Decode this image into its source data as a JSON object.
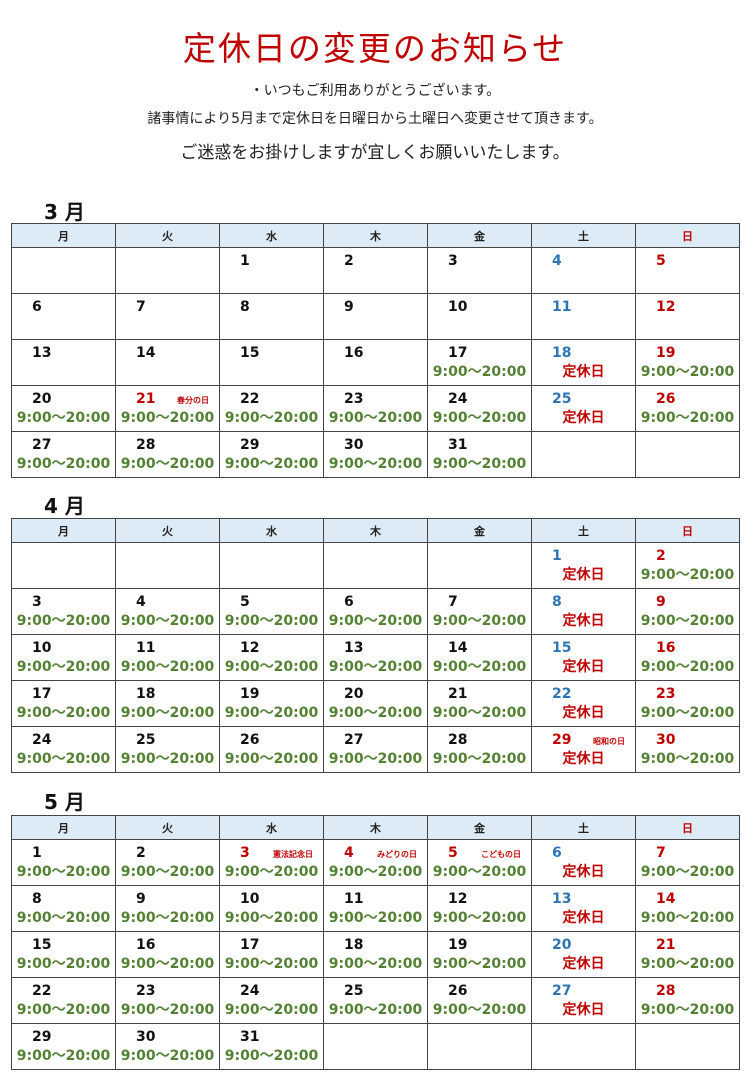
{
  "title": "定休日の変更のお知らせ",
  "lines": [
    "・いつもご利用ありがとうございます。",
    "諸事情により5月まで定休日を日曜日から土曜日へ変更させて頂きます。",
    "ご迷惑をお掛けしますが宜しくお願いいたします。"
  ],
  "weekdays": [
    "月",
    "火",
    "水",
    "木",
    "金",
    "土",
    "日"
  ],
  "hours_label": "9:00～20:00",
  "closed_label": "定休日",
  "colors": {
    "title": "#c00000",
    "saturday": "#2e75b6",
    "sunday_holiday": "#c00000",
    "hours": "#548235",
    "header_bg": "#ddebf7"
  },
  "months": [
    {
      "title": "3 月",
      "first_col": 2,
      "cells": [
        [
          "1",
          ""
        ],
        [
          "2",
          ""
        ],
        [
          "3",
          ""
        ],
        [
          "4",
          ""
        ],
        [
          "5",
          ""
        ],
        [
          "6",
          ""
        ],
        [
          "7",
          ""
        ],
        [
          "8",
          ""
        ],
        [
          "9",
          ""
        ],
        [
          "10",
          ""
        ],
        [
          "11",
          ""
        ],
        [
          "12",
          ""
        ],
        [
          "13",
          ""
        ],
        [
          "14",
          ""
        ],
        [
          "15",
          ""
        ],
        [
          "16",
          ""
        ],
        [
          "17",
          "open"
        ],
        [
          "18",
          "closed"
        ],
        [
          "19",
          "open"
        ],
        [
          "20",
          "open"
        ],
        [
          "21",
          "open"
        ],
        [
          "22",
          "open"
        ],
        [
          "23",
          "open"
        ],
        [
          "24",
          "open"
        ],
        [
          "25",
          "closed"
        ],
        [
          "26",
          "open"
        ],
        [
          "27",
          "open"
        ],
        [
          "28",
          "open"
        ],
        [
          "29",
          "open"
        ],
        [
          "30",
          "open"
        ],
        [
          "31",
          "open"
        ]
      ],
      "holidays": {
        "21": "春分の日"
      }
    },
    {
      "title": "4 月",
      "first_col": 5,
      "cells": [
        [
          "1",
          "closed"
        ],
        [
          "2",
          "open"
        ],
        [
          "3",
          "open"
        ],
        [
          "4",
          "open"
        ],
        [
          "5",
          "open"
        ],
        [
          "6",
          "open"
        ],
        [
          "7",
          "open"
        ],
        [
          "8",
          "closed"
        ],
        [
          "9",
          "open"
        ],
        [
          "10",
          "open"
        ],
        [
          "11",
          "open"
        ],
        [
          "12",
          "open"
        ],
        [
          "13",
          "open"
        ],
        [
          "14",
          "open"
        ],
        [
          "15",
          "closed"
        ],
        [
          "16",
          "open"
        ],
        [
          "17",
          "open"
        ],
        [
          "18",
          "open"
        ],
        [
          "19",
          "open"
        ],
        [
          "20",
          "open"
        ],
        [
          "21",
          "open"
        ],
        [
          "22",
          "closed"
        ],
        [
          "23",
          "open"
        ],
        [
          "24",
          "open"
        ],
        [
          "25",
          "open"
        ],
        [
          "26",
          "open"
        ],
        [
          "27",
          "open"
        ],
        [
          "28",
          "open"
        ],
        [
          "29",
          "closed"
        ],
        [
          "30",
          "open"
        ]
      ],
      "holidays": {
        "29": "昭和の日"
      }
    },
    {
      "title": "5 月",
      "first_col": 0,
      "cells": [
        [
          "1",
          "open"
        ],
        [
          "2",
          "open"
        ],
        [
          "3",
          "open"
        ],
        [
          "4",
          "open"
        ],
        [
          "5",
          "open"
        ],
        [
          "6",
          "closed"
        ],
        [
          "7",
          "open"
        ],
        [
          "8",
          "open"
        ],
        [
          "9",
          "open"
        ],
        [
          "10",
          "open"
        ],
        [
          "11",
          "open"
        ],
        [
          "12",
          "open"
        ],
        [
          "13",
          "closed"
        ],
        [
          "14",
          "open"
        ],
        [
          "15",
          "open"
        ],
        [
          "16",
          "open"
        ],
        [
          "17",
          "open"
        ],
        [
          "18",
          "open"
        ],
        [
          "19",
          "open"
        ],
        [
          "20",
          "closed"
        ],
        [
          "21",
          "open"
        ],
        [
          "22",
          "open"
        ],
        [
          "23",
          "open"
        ],
        [
          "24",
          "open"
        ],
        [
          "25",
          "open"
        ],
        [
          "26",
          "open"
        ],
        [
          "27",
          "closed"
        ],
        [
          "28",
          "open"
        ],
        [
          "29",
          "open"
        ],
        [
          "30",
          "open"
        ],
        [
          "31",
          "open"
        ]
      ],
      "holidays": {
        "3": "憲法記念日",
        "4": "みどりの日",
        "5": "こどもの日"
      }
    }
  ]
}
